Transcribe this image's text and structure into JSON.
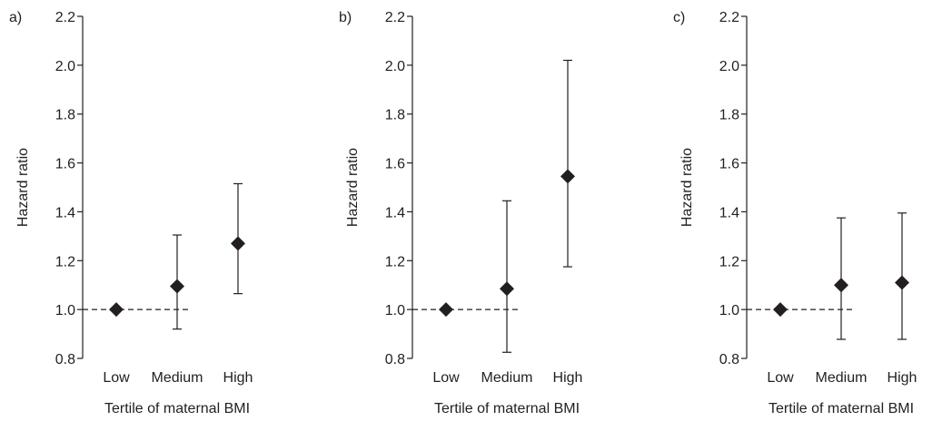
{
  "chart_data": [
    {
      "type": "scatter",
      "panel_label": "a)",
      "categories": [
        "Low",
        "Medium",
        "High"
      ],
      "values": [
        1.0,
        1.095,
        1.27
      ],
      "ci_lower": [
        null,
        0.92,
        1.065
      ],
      "ci_upper": [
        null,
        1.305,
        1.515
      ],
      "xlabel": "Tertile of maternal BMI",
      "ylabel": "Hazard ratio",
      "ylim": [
        0.8,
        2.2
      ],
      "yticks": [
        "0.8",
        "1.0",
        "1.2",
        "1.4",
        "1.6",
        "1.8",
        "2.0",
        "2.2"
      ],
      "reference_line": 1.0,
      "marker": "diamond",
      "color": "#231f20"
    },
    {
      "type": "scatter",
      "panel_label": "b)",
      "categories": [
        "Low",
        "Medium",
        "High"
      ],
      "values": [
        1.0,
        1.085,
        1.545
      ],
      "ci_lower": [
        null,
        0.825,
        1.175
      ],
      "ci_upper": [
        null,
        1.445,
        2.02
      ],
      "xlabel": "Tertile of maternal BMI",
      "ylabel": "Hazard ratio",
      "ylim": [
        0.8,
        2.2
      ],
      "yticks": [
        "0.8",
        "1.0",
        "1.2",
        "1.4",
        "1.6",
        "1.8",
        "2.0",
        "2.2"
      ],
      "reference_line": 1.0,
      "marker": "diamond",
      "color": "#231f20"
    },
    {
      "type": "scatter",
      "panel_label": "c)",
      "categories": [
        "Low",
        "Medium",
        "High"
      ],
      "values": [
        1.0,
        1.1,
        1.11
      ],
      "ci_lower": [
        null,
        0.878,
        0.878
      ],
      "ci_upper": [
        null,
        1.375,
        1.395
      ],
      "xlabel": "Tertile of maternal BMI",
      "ylabel": "Hazard ratio",
      "ylim": [
        0.8,
        2.2
      ],
      "yticks": [
        "0.8",
        "1.0",
        "1.2",
        "1.4",
        "1.6",
        "1.8",
        "2.0",
        "2.2"
      ],
      "reference_line": 1.0,
      "marker": "diamond",
      "color": "#231f20"
    }
  ]
}
